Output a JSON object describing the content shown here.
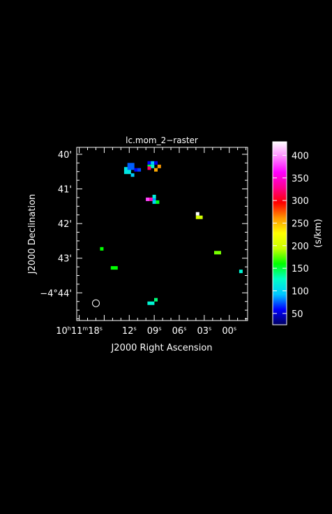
{
  "chart_data": {
    "type": "heatmap",
    "title": "lc.mom_2−raster",
    "xlabel": "J2000 Right Ascension",
    "ylabel": "J2000 Declination",
    "x_ticks": [
      {
        "ra_sec": 18,
        "parts": [
          {
            "t": "10"
          },
          {
            "t": "h",
            "sup": true
          },
          {
            "t": "11"
          },
          {
            "t": "m",
            "sup": true
          },
          {
            "t": "18"
          },
          {
            "t": "s",
            "sup": true
          }
        ]
      },
      {
        "ra_sec": 12,
        "parts": [
          {
            "t": "12"
          },
          {
            "t": "s",
            "sup": true
          }
        ]
      },
      {
        "ra_sec": 9,
        "parts": [
          {
            "t": "09"
          },
          {
            "t": "s",
            "sup": true
          }
        ]
      },
      {
        "ra_sec": 6,
        "parts": [
          {
            "t": "06"
          },
          {
            "t": "s",
            "sup": true
          }
        ]
      },
      {
        "ra_sec": 3,
        "parts": [
          {
            "t": "03"
          },
          {
            "t": "s",
            "sup": true
          }
        ]
      },
      {
        "ra_sec": 0,
        "parts": [
          {
            "t": "00"
          },
          {
            "t": "s",
            "sup": true
          }
        ]
      }
    ],
    "y_ticks": [
      {
        "dec_arcmin": 40,
        "label": "40'"
      },
      {
        "dec_arcmin": 41,
        "label": "41'"
      },
      {
        "dec_arcmin": 42,
        "label": "42'"
      },
      {
        "dec_arcmin": 43,
        "label": "43'"
      },
      {
        "dec_arcmin": 44,
        "label": "−4°44'"
      }
    ],
    "xlim_ra_sec": [
      18.3,
      -2.2
    ],
    "ylim_dec_arcmin": [
      39.8,
      44.8
    ],
    "colorbar": {
      "label": "(s/km)",
      "range": [
        25,
        430
      ],
      "ticks": [
        50,
        100,
        150,
        200,
        250,
        300,
        350,
        400
      ],
      "stops": [
        "#000060",
        "#0000ff",
        "#00c8ff",
        "#00ffc8",
        "#00ff00",
        "#c8ff00",
        "#ffff00",
        "#ff9600",
        "#ff0000",
        "#ff0090",
        "#ff00ff",
        "#ff88ff",
        "#ffffff"
      ]
    },
    "pixels": [
      {
        "ra": 12.2,
        "dec": 40.47,
        "v": 110,
        "w": 2,
        "h": 2
      },
      {
        "ra": 11.8,
        "dec": 40.35,
        "v": 75,
        "w": 2,
        "h": 2
      },
      {
        "ra": 11.6,
        "dec": 40.6,
        "v": 95
      },
      {
        "ra": 11.2,
        "dec": 40.45,
        "v": 60
      },
      {
        "ra": 10.8,
        "dec": 40.45,
        "v": 70
      },
      {
        "ra": 9.6,
        "dec": 40.25,
        "v": 60
      },
      {
        "ra": 9.2,
        "dec": 40.25,
        "v": 95
      },
      {
        "ra": 8.8,
        "dec": 40.25,
        "v": 55
      },
      {
        "ra": 8.4,
        "dec": 40.35,
        "v": 260
      },
      {
        "ra": 9.6,
        "dec": 40.35,
        "v": 150
      },
      {
        "ra": 9.2,
        "dec": 40.35,
        "v": 120
      },
      {
        "ra": 8.8,
        "dec": 40.45,
        "v": 255
      },
      {
        "ra": 9.6,
        "dec": 40.4,
        "v": 320
      },
      {
        "ra": 9.0,
        "dec": 41.3,
        "v": 85
      },
      {
        "ra": 9.8,
        "dec": 41.3,
        "v": 380
      },
      {
        "ra": 9.4,
        "dec": 41.3,
        "v": 340
      },
      {
        "ra": 9.0,
        "dec": 41.38,
        "v": 100
      },
      {
        "ra": 8.6,
        "dec": 41.38,
        "v": 155
      },
      {
        "ra": 9.0,
        "dec": 41.22,
        "v": 115
      },
      {
        "ra": 3.8,
        "dec": 41.72,
        "v": 430
      },
      {
        "ra": 3.4,
        "dec": 41.82,
        "v": 200
      },
      {
        "ra": 3.8,
        "dec": 41.82,
        "v": 205
      },
      {
        "ra": 15.3,
        "dec": 42.73,
        "v": 160
      },
      {
        "ra": 13.8,
        "dec": 43.28,
        "v": 160,
        "w": 2
      },
      {
        "ra": 1.4,
        "dec": 42.84,
        "v": 180,
        "w": 2
      },
      {
        "ra": -1.4,
        "dec": 43.38,
        "v": 120
      },
      {
        "ra": 9.4,
        "dec": 44.3,
        "v": 120,
        "w": 2
      },
      {
        "ra": 8.8,
        "dec": 44.2,
        "v": 140
      }
    ],
    "beam_marker": {
      "ra": 16.0,
      "dec": 44.3
    }
  }
}
